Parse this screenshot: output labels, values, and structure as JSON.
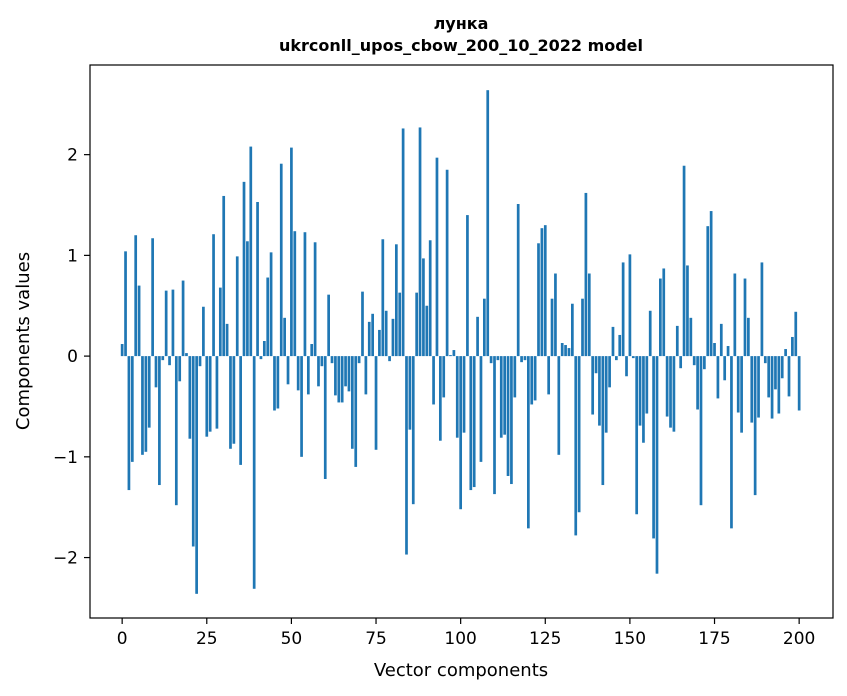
{
  "chart_data": {
    "type": "bar",
    "title": "лунка",
    "subtitle": "ukrconll_upos_cbow_200_10_2022 model",
    "xlabel": "Vector components",
    "ylabel": "Components values",
    "xlim": [
      -9.5,
      210
    ],
    "ylim": [
      -2.6,
      2.89
    ],
    "xticks": [
      0,
      25,
      50,
      75,
      100,
      125,
      150,
      175,
      200
    ],
    "xtick_labels": [
      "0",
      "25",
      "50",
      "75",
      "100",
      "125",
      "150",
      "175",
      "200"
    ],
    "yticks": [
      -2,
      -1,
      0,
      1,
      2
    ],
    "ytick_labels": [
      "−2",
      "−1",
      "0",
      "1",
      "2"
    ],
    "grid": false,
    "legend": "none",
    "bar_color": "#1f77b4",
    "series": [
      {
        "values": [
          0.12,
          1.04,
          -1.33,
          -1.05,
          1.2,
          0.7,
          -0.98,
          -0.95,
          -0.71,
          1.17,
          -0.31,
          -1.28,
          -0.04,
          0.65,
          -0.09,
          0.66,
          -1.48,
          -0.25,
          0.75,
          0.03,
          -0.82,
          -1.89,
          -2.36,
          -0.1,
          0.49,
          -0.8,
          -0.75,
          1.21,
          -0.72,
          0.68,
          1.59,
          0.32,
          -0.92,
          -0.87,
          0.99,
          -1.08,
          1.73,
          1.14,
          2.08,
          -2.31,
          1.53,
          -0.03,
          0.15,
          0.78,
          1.03,
          -0.54,
          -0.52,
          1.91,
          0.38,
          -0.28,
          2.07,
          1.24,
          -0.34,
          -1.0,
          1.23,
          -0.38,
          0.12,
          1.13,
          -0.3,
          -0.1,
          -1.22,
          0.61,
          -0.07,
          -0.39,
          -0.46,
          -0.46,
          -0.3,
          -0.35,
          -0.92,
          -1.1,
          -0.07,
          0.64,
          -0.38,
          0.34,
          0.42,
          -0.93,
          0.26,
          1.16,
          0.45,
          -0.05,
          0.37,
          1.11,
          0.63,
          2.26,
          -1.97,
          -0.73,
          -1.47,
          0.63,
          2.27,
          0.97,
          0.5,
          1.15,
          -0.48,
          1.97,
          -0.84,
          -0.41,
          1.85,
          0.01,
          0.06,
          -0.81,
          -1.52,
          -0.76,
          1.4,
          -1.33,
          -1.3,
          0.39,
          -1.05,
          0.57,
          2.64,
          -0.07,
          -1.37,
          -0.04,
          -0.81,
          -0.78,
          -1.19,
          -1.27,
          -0.41,
          1.51,
          -0.06,
          -0.04,
          -1.71,
          -0.48,
          -0.44,
          1.12,
          1.27,
          1.3,
          -0.38,
          0.57,
          0.82,
          -0.98,
          0.13,
          0.11,
          0.08,
          0.52,
          -1.78,
          -1.55,
          0.57,
          1.62,
          0.82,
          -0.58,
          -0.17,
          -0.69,
          -1.28,
          -0.76,
          -0.31,
          0.29,
          -0.04,
          0.21,
          0.93,
          -0.2,
          1.01,
          -0.02,
          -1.57,
          -0.69,
          -0.86,
          -0.57,
          0.45,
          -1.81,
          -2.16,
          0.77,
          0.87,
          -0.6,
          -0.71,
          -0.75,
          0.3,
          -0.12,
          1.89,
          0.9,
          0.38,
          -0.09,
          -0.53,
          -1.48,
          -0.13,
          1.29,
          1.44,
          0.13,
          -0.42,
          0.32,
          -0.24,
          0.1,
          -1.71,
          0.82,
          -0.56,
          -0.76,
          0.77,
          0.38,
          -0.66,
          -1.38,
          -0.61,
          0.93,
          -0.07,
          -0.41,
          -0.62,
          -0.33,
          -0.57,
          -0.22,
          0.07,
          -0.4,
          0.19,
          0.44,
          -0.54
        ]
      }
    ]
  }
}
